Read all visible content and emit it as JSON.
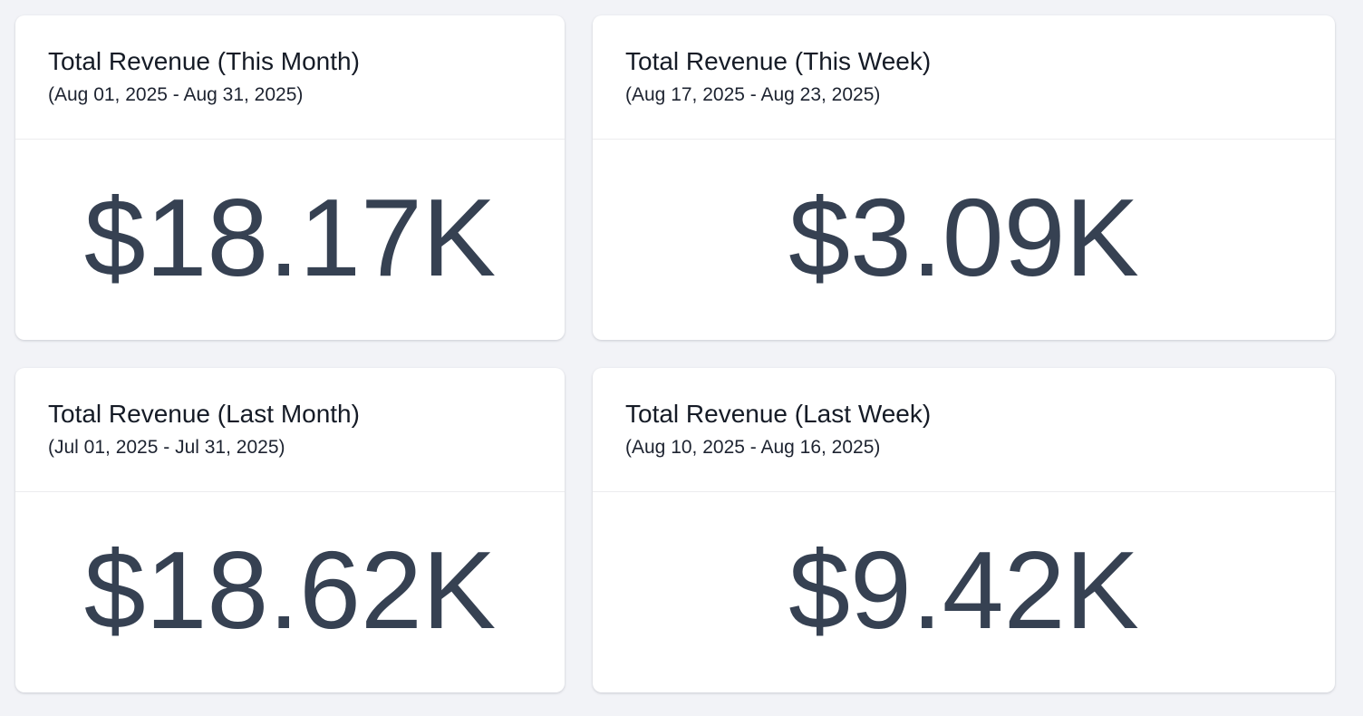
{
  "cards": [
    {
      "title": "Total Revenue (This Month)",
      "subtitle": "(Aug 01, 2025 - Aug 31, 2025)",
      "value": "$18.17K"
    },
    {
      "title": "Total Revenue (This Week)",
      "subtitle": "(Aug 17, 2025 - Aug 23, 2025)",
      "value": "$3.09K"
    },
    {
      "title": "Total Revenue (Last Month)",
      "subtitle": "(Jul 01, 2025 - Jul 31, 2025)",
      "value": "$18.62K"
    },
    {
      "title": "Total Revenue (Last Week)",
      "subtitle": "(Aug 10, 2025 - Aug 16, 2025)",
      "value": "$9.42K"
    }
  ],
  "colors": {
    "background": "#f2f3f7",
    "card": "#ffffff",
    "title": "#151b26",
    "value": "#364152",
    "divider": "#ececee"
  }
}
